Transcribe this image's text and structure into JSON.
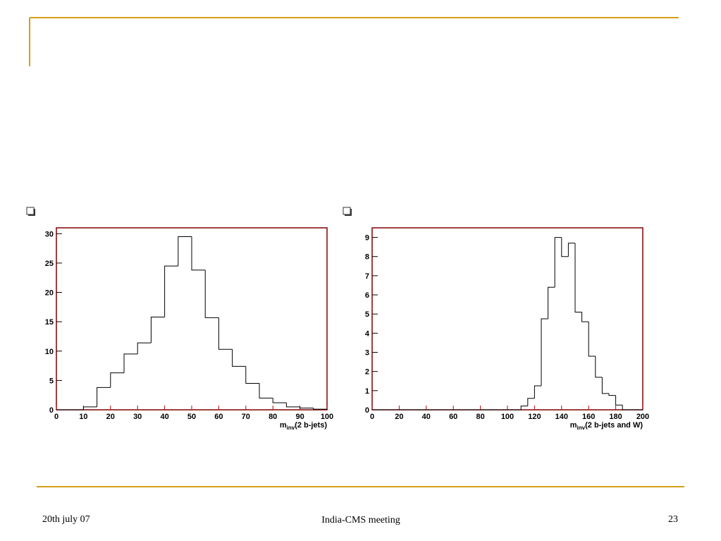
{
  "chart_data": [
    {
      "type": "histogram",
      "xlabel": {
        "symbol": "m",
        "subscript": "inv",
        "rest": "(2 b-jets)"
      },
      "bins": [
        0,
        5,
        10,
        15,
        20,
        25,
        30,
        35,
        40,
        45,
        50,
        55,
        60,
        65,
        70,
        75,
        80,
        85,
        90,
        95,
        100
      ],
      "values": [
        0,
        0,
        0.5,
        3.8,
        6.3,
        9.5,
        11.4,
        15.8,
        24.5,
        29.5,
        23.8,
        15.7,
        10.3,
        7.4,
        4.5,
        2.0,
        1.2,
        0.5,
        0.3,
        0.1
      ],
      "xlim": [
        0,
        100
      ],
      "xticks": [
        0,
        10,
        20,
        30,
        40,
        50,
        60,
        70,
        80,
        90,
        100
      ],
      "ylim": [
        0,
        31
      ],
      "yticks": [
        0,
        5,
        10,
        15,
        20,
        25,
        30
      ],
      "color": "#000000",
      "frame_color": "#800000"
    },
    {
      "type": "histogram",
      "xlabel": {
        "symbol": "m",
        "subscript": "inv",
        "rest": "(2 b-jets and W)"
      },
      "bins": [
        0,
        5,
        10,
        15,
        20,
        25,
        30,
        35,
        40,
        45,
        50,
        55,
        60,
        65,
        70,
        75,
        80,
        85,
        90,
        95,
        100,
        105,
        110,
        115,
        120,
        125,
        130,
        135,
        140,
        145,
        150,
        155,
        160,
        165,
        170,
        175,
        180,
        185,
        190,
        195,
        200
      ],
      "values": [
        0,
        0,
        0,
        0,
        0,
        0,
        0,
        0,
        0,
        0,
        0,
        0,
        0,
        0,
        0,
        0,
        0,
        0,
        0,
        0,
        0,
        0,
        0.2,
        0.6,
        1.25,
        4.75,
        6.4,
        9.0,
        8.0,
        8.7,
        5.1,
        4.6,
        2.8,
        1.7,
        0.85,
        0.75,
        0.25,
        0,
        0,
        0
      ],
      "xlim": [
        0,
        200
      ],
      "xticks": [
        0,
        20,
        40,
        60,
        80,
        100,
        120,
        140,
        160,
        180,
        200
      ],
      "ylim": [
        0,
        9.5
      ],
      "yticks": [
        0,
        1,
        2,
        3,
        4,
        5,
        6,
        7,
        8,
        9
      ],
      "color": "#000000",
      "frame_color": "#800000"
    }
  ],
  "footer": {
    "left": "20th july 07",
    "center": "India-CMS meeting",
    "right": "23"
  }
}
